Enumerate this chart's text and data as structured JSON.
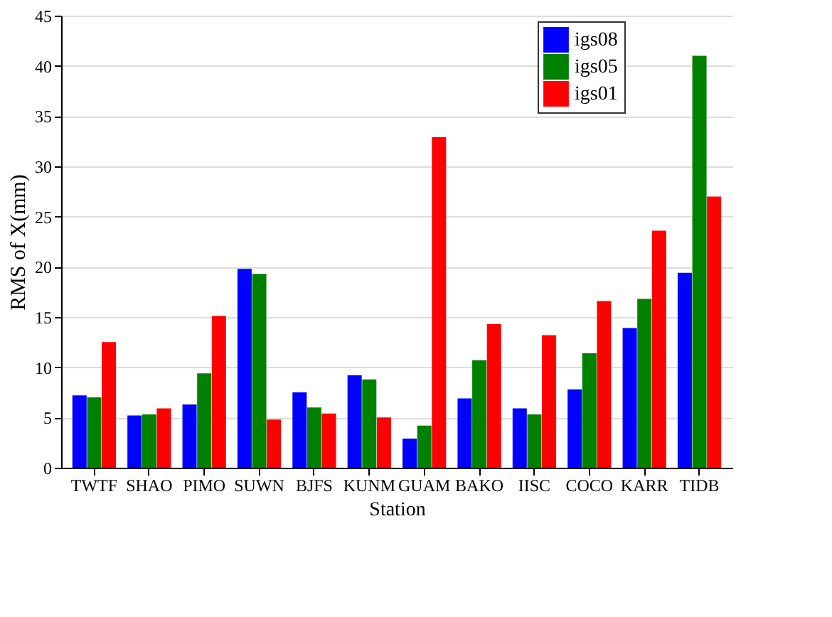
{
  "chart_data": {
    "type": "bar",
    "xlabel": "Station",
    "ylabel": "RMS of X(mm)",
    "categories": [
      "TWTF",
      "SHAO",
      "PIMO",
      "SUWN",
      "BJFS",
      "KUNM",
      "GUAM",
      "BAKO",
      "IISC",
      "COCO",
      "KARR",
      "TIDB"
    ],
    "series": [
      {
        "name": "igs08",
        "color": "#0000ff",
        "values": [
          7.2,
          5.2,
          6.3,
          19.8,
          7.5,
          9.2,
          2.9,
          6.9,
          5.9,
          7.8,
          13.9,
          19.4
        ]
      },
      {
        "name": "igs05",
        "color": "#008000",
        "values": [
          7.0,
          5.3,
          9.4,
          19.3,
          6.0,
          8.8,
          4.2,
          10.7,
          5.3,
          11.4,
          16.8,
          41.0
        ]
      },
      {
        "name": "igs01",
        "color": "#ff0000",
        "values": [
          12.5,
          5.9,
          15.1,
          4.8,
          5.4,
          5.0,
          32.9,
          14.3,
          13.2,
          16.6,
          23.6,
          27.0
        ]
      }
    ],
    "ylim": [
      0,
      45
    ],
    "yticks": [
      0,
      5,
      10,
      15,
      20,
      25,
      30,
      35,
      40,
      45
    ],
    "grid": "y",
    "legend": "top right"
  }
}
